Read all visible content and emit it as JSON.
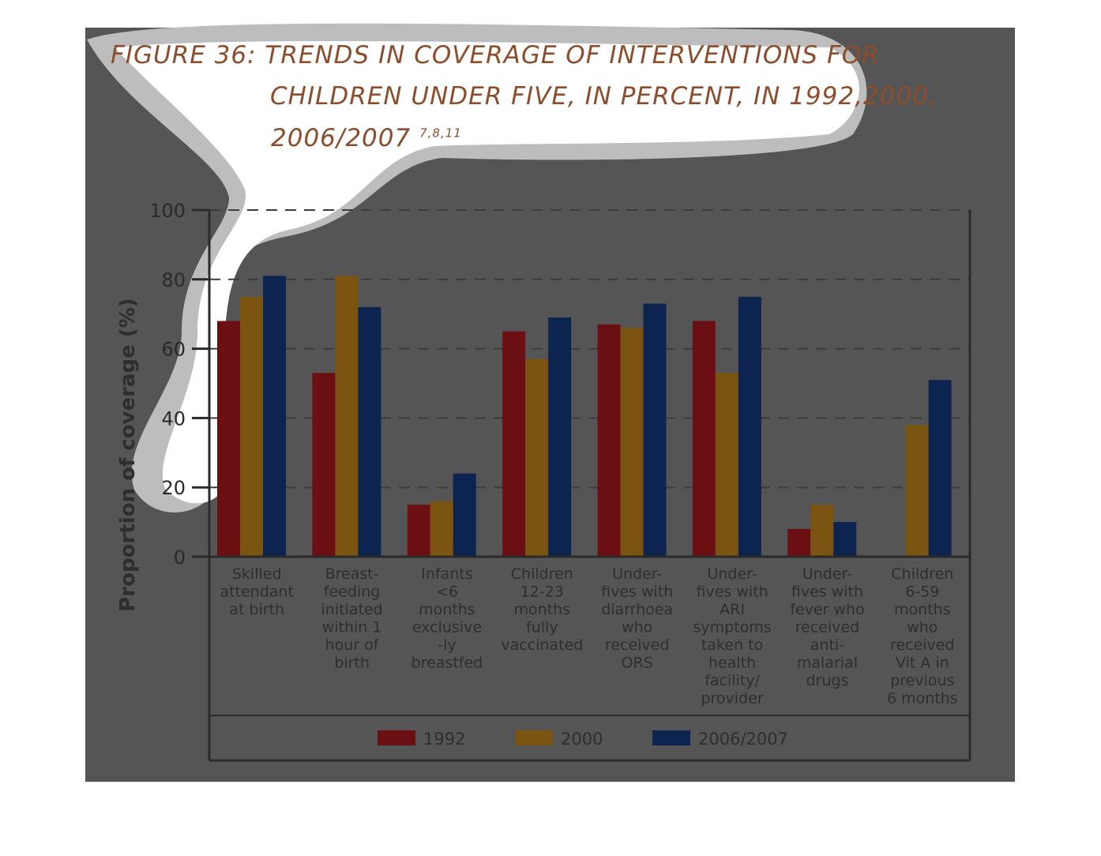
{
  "title": {
    "line1": "FIGURE 36: TRENDS IN COVERAGE OF INTERVENTIONS FOR",
    "line2": "CHILDREN UNDER FIVE, IN PERCENT, IN 1992,2000,",
    "line3": "2006/2007",
    "refs": "7,8,11"
  },
  "colors": {
    "1992": "#6b0f13",
    "2000": "#7a5410",
    "2006/2007": "#0d2450",
    "panel": "#555555",
    "title": "#8b4d2c"
  },
  "chart_data": {
    "type": "bar",
    "ylabel": "Proportion of coverage (%)",
    "ylim": [
      0,
      100
    ],
    "yticks": [
      "0",
      "20",
      "40",
      "60",
      "80",
      "100"
    ],
    "grid": true,
    "legend_position": "bottom",
    "categories": [
      [
        "Skilled",
        "attendant",
        "at birth"
      ],
      [
        "Breast-",
        "feeding",
        "initiated",
        "within 1",
        "hour of",
        "birth"
      ],
      [
        "Infants",
        "<6",
        "months",
        "exclusive",
        "-ly",
        "breastfed"
      ],
      [
        "Children",
        "12-23",
        "months",
        "fully",
        "vaccinated"
      ],
      [
        "Under-",
        "fives with",
        "diarrhoea",
        "who",
        "received",
        "ORS"
      ],
      [
        "Under-",
        "fives with",
        "ARI",
        "symptoms",
        "taken to",
        "health",
        "facility/",
        "provider"
      ],
      [
        "Under-",
        "fives with",
        "fever who",
        "received",
        "anti-",
        "malarial",
        "drugs"
      ],
      [
        "Children",
        "6-59",
        "months",
        "who",
        "received",
        "Vit A in",
        "previous",
        "6 months"
      ]
    ],
    "series": [
      {
        "name": "1992",
        "values": [
          68,
          53,
          15,
          65,
          67,
          68,
          8,
          null
        ]
      },
      {
        "name": "2000",
        "values": [
          75,
          81,
          16,
          57,
          66,
          53,
          15,
          38
        ]
      },
      {
        "name": "2006/2007",
        "values": [
          81,
          72,
          24,
          69,
          73,
          75,
          10,
          51
        ]
      }
    ]
  }
}
